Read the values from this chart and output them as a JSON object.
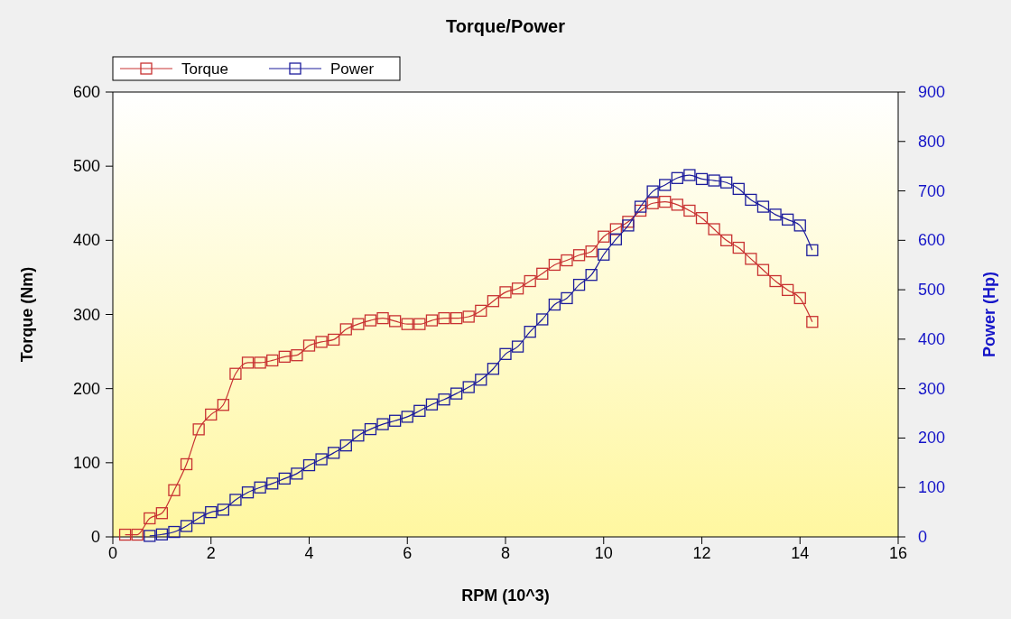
{
  "chart_data": {
    "type": "line",
    "title": "Torque/Power",
    "xlabel": "RPM (10^3)",
    "ylabel": "Torque (Nm)",
    "y2label": "Power (Hp)",
    "xlim": [
      0,
      16
    ],
    "xticks": [
      0,
      2,
      4,
      6,
      8,
      10,
      12,
      14,
      16
    ],
    "ylim": [
      0,
      600
    ],
    "yticks": [
      0,
      100,
      200,
      300,
      400,
      500,
      600
    ],
    "y2lim": [
      0,
      900
    ],
    "y2ticks": [
      0,
      100,
      200,
      300,
      400,
      500,
      600,
      700,
      800,
      900
    ],
    "legend": "top left",
    "marker": "square",
    "line_style": "solid",
    "grid": false,
    "series": [
      {
        "name": "Torque",
        "color": "#c83232",
        "x": [
          0.25,
          0.5,
          0.75,
          1.0,
          1.25,
          1.5,
          1.75,
          2.0,
          2.25,
          2.5,
          2.75,
          3.0,
          3.25,
          3.5,
          3.75,
          4.0,
          4.25,
          4.5,
          4.75,
          5.0,
          5.25,
          5.5,
          5.75,
          6.0,
          6.25,
          6.5,
          6.75,
          7.0,
          7.25,
          7.5,
          7.75,
          8.0,
          8.25,
          8.5,
          8.75,
          9.0,
          9.25,
          9.5,
          9.75,
          10.0,
          10.25,
          10.5,
          10.75,
          11.0,
          11.25,
          11.5,
          11.75,
          12.0,
          12.25,
          12.5,
          12.75,
          13.0,
          13.25,
          13.5,
          13.75,
          14.0,
          14.25
        ],
        "values": [
          3,
          3,
          25,
          32,
          63,
          98,
          145,
          165,
          178,
          220,
          235,
          235,
          238,
          243,
          245,
          258,
          263,
          266,
          280,
          287,
          292,
          295,
          291,
          287,
          287,
          292,
          295,
          295,
          297,
          305,
          318,
          330,
          335,
          345,
          355,
          367,
          373,
          380,
          385,
          405,
          415,
          425,
          440,
          450,
          452,
          448,
          440,
          430,
          415,
          400,
          390,
          375,
          360,
          345,
          333,
          322,
          290
        ]
      },
      {
        "name": "Power",
        "color": "#1c1c9c",
        "axis": "y2",
        "x": [
          0.75,
          1.0,
          1.25,
          1.5,
          1.75,
          2.0,
          2.25,
          2.5,
          2.75,
          3.0,
          3.25,
          3.5,
          3.75,
          4.0,
          4.25,
          4.5,
          4.75,
          5.0,
          5.25,
          5.5,
          5.75,
          6.0,
          6.25,
          6.5,
          6.75,
          7.0,
          7.25,
          7.5,
          7.75,
          8.0,
          8.25,
          8.5,
          8.75,
          9.0,
          9.25,
          9.5,
          9.75,
          10.0,
          10.25,
          10.5,
          10.75,
          11.0,
          11.25,
          11.5,
          11.75,
          12.0,
          12.25,
          12.5,
          12.75,
          13.0,
          13.25,
          13.5,
          13.75,
          14.0,
          14.25
        ],
        "values": [
          2,
          5,
          10,
          22,
          38,
          50,
          55,
          75,
          90,
          100,
          108,
          118,
          128,
          145,
          157,
          170,
          185,
          205,
          218,
          228,
          235,
          243,
          255,
          268,
          278,
          290,
          303,
          318,
          340,
          370,
          385,
          415,
          440,
          470,
          483,
          510,
          530,
          571,
          602,
          630,
          668,
          699,
          712,
          726,
          732,
          724,
          721,
          717,
          704,
          682,
          668,
          652,
          642,
          630,
          580
        ]
      }
    ]
  }
}
